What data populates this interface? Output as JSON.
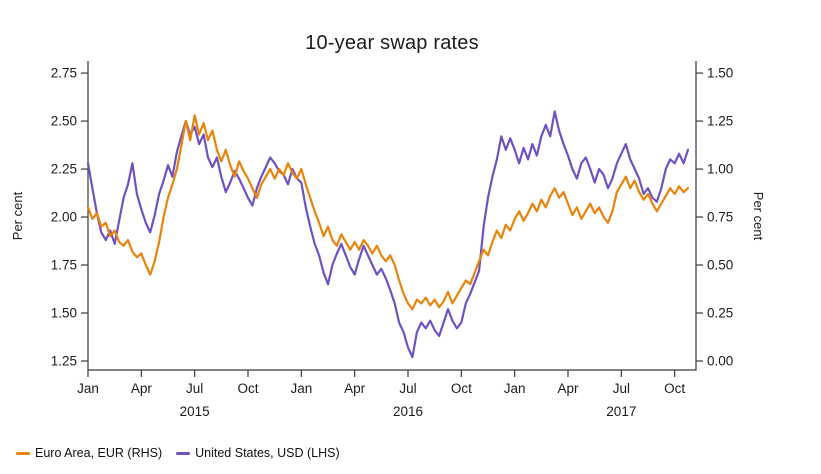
{
  "chart_data": {
    "type": "line",
    "title": "10-year swap rates",
    "ylabel_left": "Per cent",
    "ylabel_right": "Per cent",
    "left_ylim": [
      1.25,
      2.75
    ],
    "right_ylim": [
      0.0,
      1.5
    ],
    "xlim_months": [
      0,
      34.2
    ],
    "left_ticks": [
      "2.75",
      "2.50",
      "2.25",
      "2.00",
      "1.75",
      "1.50",
      "1.25"
    ],
    "right_ticks": [
      "1.50",
      "1.25",
      "1.00",
      "0.75",
      "0.50",
      "0.25",
      "0.00"
    ],
    "x_ticks": [
      {
        "pos": 0,
        "label": "Jan"
      },
      {
        "pos": 3,
        "label": "Apr"
      },
      {
        "pos": 6,
        "label": "Jul"
      },
      {
        "pos": 9,
        "label": "Oct"
      },
      {
        "pos": 12,
        "label": "Jan"
      },
      {
        "pos": 15,
        "label": "Apr"
      },
      {
        "pos": 18,
        "label": "Jul"
      },
      {
        "pos": 21,
        "label": "Oct"
      },
      {
        "pos": 24,
        "label": "Jan"
      },
      {
        "pos": 27,
        "label": "Apr"
      },
      {
        "pos": 30,
        "label": "Jul"
      },
      {
        "pos": 33,
        "label": "Oct"
      }
    ],
    "year_labels": [
      {
        "pos": 6,
        "label": "2015"
      },
      {
        "pos": 18,
        "label": "2016"
      },
      {
        "pos": 30,
        "label": "2017"
      }
    ],
    "x_unit": "months since Jan 2015",
    "x_start": 0,
    "x_step": 0.25,
    "series": [
      {
        "name": "United States, USD (LHS)",
        "axis": "left",
        "color": "#6E52C3",
        "values": [
          2.28,
          2.15,
          2.02,
          1.92,
          1.88,
          1.93,
          1.86,
          1.98,
          2.1,
          2.17,
          2.28,
          2.12,
          2.04,
          1.97,
          1.92,
          2.01,
          2.12,
          2.19,
          2.27,
          2.21,
          2.34,
          2.42,
          2.5,
          2.43,
          2.47,
          2.38,
          2.43,
          2.31,
          2.26,
          2.31,
          2.21,
          2.13,
          2.18,
          2.24,
          2.2,
          2.15,
          2.1,
          2.06,
          2.15,
          2.21,
          2.26,
          2.31,
          2.28,
          2.24,
          2.22,
          2.17,
          2.25,
          2.2,
          2.18,
          2.05,
          1.95,
          1.86,
          1.8,
          1.71,
          1.65,
          1.75,
          1.81,
          1.86,
          1.8,
          1.74,
          1.7,
          1.78,
          1.85,
          1.8,
          1.75,
          1.7,
          1.73,
          1.68,
          1.62,
          1.55,
          1.45,
          1.4,
          1.32,
          1.27,
          1.4,
          1.45,
          1.42,
          1.46,
          1.41,
          1.38,
          1.45,
          1.52,
          1.46,
          1.42,
          1.45,
          1.55,
          1.6,
          1.66,
          1.72,
          1.95,
          2.1,
          2.21,
          2.3,
          2.42,
          2.35,
          2.41,
          2.35,
          2.28,
          2.36,
          2.3,
          2.38,
          2.32,
          2.42,
          2.48,
          2.42,
          2.55,
          2.45,
          2.38,
          2.32,
          2.25,
          2.2,
          2.28,
          2.31,
          2.25,
          2.18,
          2.25,
          2.22,
          2.15,
          2.2,
          2.28,
          2.33,
          2.38,
          2.3,
          2.25,
          2.2,
          2.12,
          2.15,
          2.1,
          2.08,
          2.15,
          2.25,
          2.3,
          2.28,
          2.33,
          2.28,
          2.35
        ]
      },
      {
        "name": "Euro Area, EUR (RHS)",
        "axis": "right",
        "color": "#E8840B",
        "values": [
          0.8,
          0.74,
          0.77,
          0.7,
          0.72,
          0.65,
          0.68,
          0.62,
          0.6,
          0.63,
          0.57,
          0.54,
          0.56,
          0.5,
          0.45,
          0.52,
          0.62,
          0.75,
          0.85,
          0.92,
          1.0,
          1.12,
          1.25,
          1.15,
          1.28,
          1.18,
          1.24,
          1.15,
          1.2,
          1.1,
          1.04,
          1.1,
          1.02,
          0.96,
          1.04,
          0.99,
          0.95,
          0.9,
          0.85,
          0.92,
          0.96,
          1.0,
          0.95,
          1.0,
          0.97,
          1.03,
          0.98,
          0.95,
          1.0,
          0.92,
          0.85,
          0.78,
          0.72,
          0.65,
          0.7,
          0.63,
          0.6,
          0.66,
          0.62,
          0.58,
          0.62,
          0.58,
          0.63,
          0.6,
          0.56,
          0.6,
          0.55,
          0.52,
          0.55,
          0.5,
          0.42,
          0.35,
          0.3,
          0.27,
          0.32,
          0.3,
          0.33,
          0.29,
          0.32,
          0.28,
          0.31,
          0.36,
          0.3,
          0.34,
          0.38,
          0.42,
          0.4,
          0.46,
          0.52,
          0.58,
          0.55,
          0.62,
          0.68,
          0.64,
          0.71,
          0.68,
          0.74,
          0.78,
          0.73,
          0.77,
          0.82,
          0.78,
          0.84,
          0.8,
          0.86,
          0.9,
          0.85,
          0.88,
          0.82,
          0.76,
          0.8,
          0.74,
          0.78,
          0.82,
          0.77,
          0.8,
          0.75,
          0.72,
          0.78,
          0.88,
          0.92,
          0.96,
          0.9,
          0.94,
          0.88,
          0.84,
          0.87,
          0.82,
          0.78,
          0.82,
          0.86,
          0.9,
          0.87,
          0.91,
          0.88,
          0.9
        ]
      }
    ],
    "legend_position": "bottom-left",
    "grid": false
  }
}
